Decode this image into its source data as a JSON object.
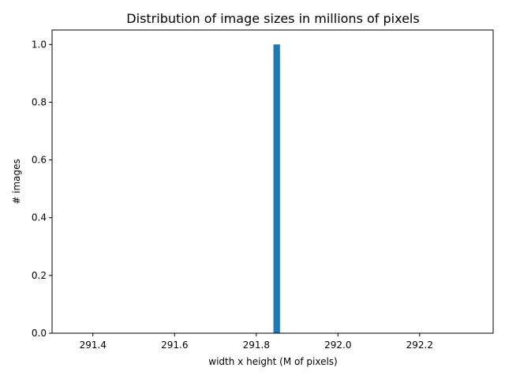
{
  "chart_data": {
    "type": "bar",
    "title": "Distribution of image sizes in millions of pixels",
    "xlabel": "width x height (M of pixels)",
    "ylabel": "# images",
    "x": [
      291.85
    ],
    "values": [
      1
    ],
    "bar_width": 0.016,
    "xlim": [
      291.3,
      292.38
    ],
    "ylim": [
      0,
      1.05
    ],
    "x_ticks": [
      "291.4",
      "291.6",
      "291.8",
      "292.0",
      "292.2"
    ],
    "y_ticks": [
      "0.0",
      "0.2",
      "0.4",
      "0.6",
      "0.8",
      "1.0"
    ],
    "grid": false,
    "bar_color": "#1f77b4"
  }
}
